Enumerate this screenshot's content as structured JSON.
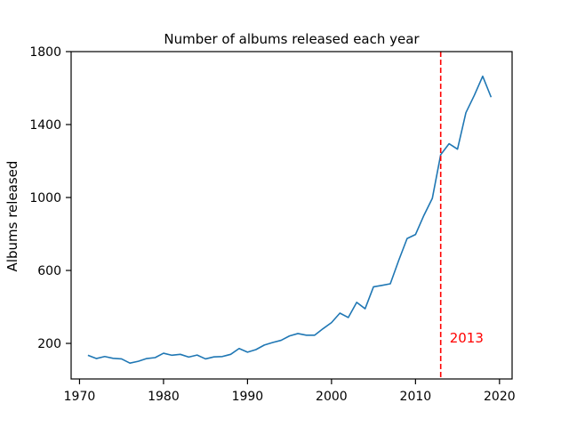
{
  "chart_data": {
    "type": "line",
    "title": "Number of albums released each year",
    "xlabel": "",
    "ylabel": "Albums released",
    "xlim": [
      1969,
      2021.5
    ],
    "ylim": [
      5,
      1800
    ],
    "x_ticks": [
      1970,
      1980,
      1990,
      2000,
      2010,
      2020
    ],
    "y_ticks": [
      200,
      600,
      1000,
      1400,
      1800
    ],
    "grid": false,
    "series": [
      {
        "color": "#1f77b4",
        "x": [
          1971,
          1972,
          1973,
          1974,
          1975,
          1976,
          1977,
          1978,
          1979,
          1980,
          1981,
          1982,
          1983,
          1984,
          1985,
          1986,
          1987,
          1988,
          1989,
          1990,
          1991,
          1992,
          1993,
          1994,
          1995,
          1996,
          1997,
          1998,
          1999,
          2000,
          2001,
          2002,
          2003,
          2004,
          2005,
          2006,
          2007,
          2008,
          2009,
          2010,
          2011,
          2012,
          2013,
          2014,
          2015,
          2016,
          2017,
          2018,
          2019
        ],
        "values": [
          135,
          117,
          128,
          118,
          115,
          92,
          102,
          117,
          122,
          146,
          135,
          140,
          125,
          136,
          115,
          126,
          128,
          140,
          172,
          152,
          166,
          191,
          205,
          217,
          241,
          254,
          245,
          245,
          281,
          314,
          366,
          342,
          425,
          390,
          510,
          518,
          527,
          655,
          775,
          797,
          902,
          995,
          1235,
          1295,
          1265,
          1465,
          1560,
          1665,
          1550
        ]
      }
    ],
    "annotations": [
      {
        "type": "vline",
        "x": 2013,
        "color": "#ff0000",
        "style": "dashed",
        "label": "2013",
        "label_y": 225
      }
    ]
  }
}
